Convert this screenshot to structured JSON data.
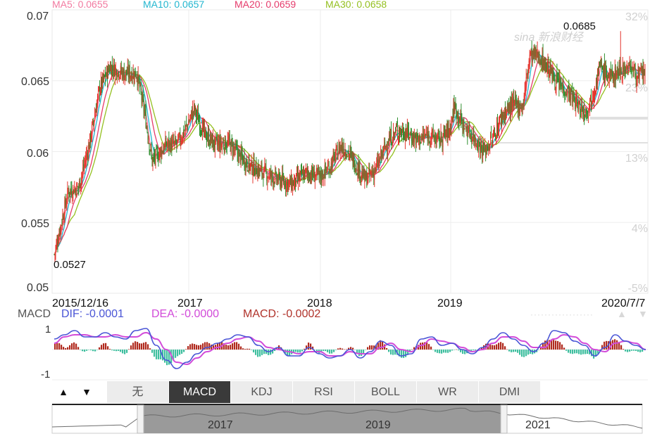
{
  "ma_legend": [
    {
      "label": "MA5: 0.0655",
      "color": "#f27aa0"
    },
    {
      "label": "MA10: 0.0657",
      "color": "#22b6cf"
    },
    {
      "label": "MA20: 0.0659",
      "color": "#e53b6b"
    },
    {
      "label": "MA30: 0.0658",
      "color": "#94c020"
    }
  ],
  "watermark": "sina 新浪财经",
  "macd_legend": {
    "title": "MACD",
    "dif": "DIF: -0.0001",
    "dea": "DEA: -0.0000",
    "macd": "MACD: -0.0002",
    "dif_color": "#4a55d6",
    "dea_color": "#d24bd9",
    "macd_color": "#b0322a"
  },
  "colors": {
    "up": "#e4342c",
    "down": "#2f8f2f",
    "macd_pos": "#b02a1e",
    "macd_neg": "#3fbf9f"
  },
  "tabs": [
    "无",
    "MACD",
    "KDJ",
    "RSI",
    "BOLL",
    "WR",
    "DMI"
  ],
  "active_tab": "MACD",
  "nav_buttons": {
    "up": "▲",
    "down": "▼"
  },
  "scroller": {
    "labels": [
      "2017",
      "2019",
      "2021"
    ]
  },
  "chart_data": [
    {
      "type": "candlestick",
      "x_labels": [
        "2015/12/16",
        "2017",
        "2018",
        "2019",
        "2020/7/7"
      ],
      "y_ticks": [
        "0.07",
        "0.065",
        "0.06",
        "0.055",
        "0.05"
      ],
      "y_ticks_right": [
        "32%",
        "23%",
        "13%",
        "4%",
        "-5%"
      ],
      "ylim": [
        0.05,
        0.07
      ],
      "annotations": {
        "min": "0.0527",
        "max": "0.0685"
      },
      "key_points": [
        [
          0,
          0.0527
        ],
        [
          20,
          0.0572
        ],
        [
          35,
          0.0575
        ],
        [
          50,
          0.0605
        ],
        [
          65,
          0.0645
        ],
        [
          80,
          0.066
        ],
        [
          100,
          0.0655
        ],
        [
          118,
          0.0655
        ],
        [
          130,
          0.0625
        ],
        [
          140,
          0.0593
        ],
        [
          160,
          0.0605
        ],
        [
          175,
          0.0605
        ],
        [
          185,
          0.0613
        ],
        [
          200,
          0.063
        ],
        [
          215,
          0.0612
        ],
        [
          230,
          0.0605
        ],
        [
          250,
          0.0606
        ],
        [
          265,
          0.0597
        ],
        [
          280,
          0.059
        ],
        [
          300,
          0.0585
        ],
        [
          320,
          0.058
        ],
        [
          340,
          0.0577
        ],
        [
          360,
          0.0585
        ],
        [
          380,
          0.0582
        ],
        [
          395,
          0.059
        ],
        [
          410,
          0.0604
        ],
        [
          420,
          0.06
        ],
        [
          432,
          0.059
        ],
        [
          445,
          0.058
        ],
        [
          460,
          0.0588
        ],
        [
          475,
          0.0605
        ],
        [
          490,
          0.0615
        ],
        [
          505,
          0.0613
        ],
        [
          520,
          0.0608
        ],
        [
          535,
          0.0612
        ],
        [
          550,
          0.0608
        ],
        [
          565,
          0.0615
        ],
        [
          572,
          0.0632
        ],
        [
          585,
          0.0618
        ],
        [
          600,
          0.061
        ],
        [
          615,
          0.06
        ],
        [
          628,
          0.061
        ],
        [
          640,
          0.0625
        ],
        [
          655,
          0.0633
        ],
        [
          670,
          0.0632
        ],
        [
          680,
          0.0668
        ],
        [
          692,
          0.0668
        ],
        [
          705,
          0.066
        ],
        [
          720,
          0.0648
        ],
        [
          735,
          0.0642
        ],
        [
          750,
          0.0632
        ],
        [
          760,
          0.0628
        ],
        [
          770,
          0.064
        ],
        [
          780,
          0.066
        ],
        [
          795,
          0.0652
        ],
        [
          810,
          0.0658
        ],
        [
          825,
          0.066
        ],
        [
          835,
          0.0652
        ],
        [
          845,
          0.0657
        ]
      ]
    },
    {
      "type": "macd",
      "y_ticks": [
        "1",
        "-1"
      ],
      "series": [
        {
          "name": "DIF",
          "values": [
            0.5,
            0.7,
            0.9,
            0.6,
            0.6,
            0.8,
            0.6,
            0.5,
            0.9,
            1.0,
            0.2,
            -0.5,
            -0.9,
            -0.6,
            -0.2,
            0.1,
            0.3,
            0.5,
            0.7,
            0.6,
            0.2,
            -0.1,
            0.1,
            -0.3,
            -0.3,
            0.1,
            -0.2,
            -0.4,
            -0.3,
            0.0,
            -0.4,
            -0.1,
            0.4,
            0.2,
            -0.3,
            -0.2,
            0.5,
            0.6,
            0.2,
            0.3,
            0.0,
            -0.2,
            0.1,
            0.5,
            0.8,
            0.5,
            0.2,
            -0.1,
            0.3,
            0.9,
            0.8,
            0.4,
            0.2,
            -0.3,
            0.1,
            0.7,
            0.4,
            0.2,
            0.0
          ]
        },
        {
          "name": "DEA",
          "values": [
            0.3,
            0.6,
            0.7,
            0.7,
            0.6,
            0.6,
            0.7,
            0.6,
            0.6,
            0.8,
            0.5,
            0.0,
            -0.6,
            -0.7,
            -0.4,
            -0.1,
            0.1,
            0.3,
            0.5,
            0.6,
            0.4,
            0.1,
            0.0,
            -0.1,
            -0.2,
            -0.1,
            -0.1,
            -0.3,
            -0.3,
            -0.1,
            -0.2,
            -0.2,
            0.1,
            0.3,
            0.0,
            -0.1,
            0.2,
            0.5,
            0.4,
            0.3,
            0.1,
            -0.1,
            0.0,
            0.3,
            0.6,
            0.6,
            0.4,
            0.1,
            0.1,
            0.5,
            0.7,
            0.6,
            0.3,
            0.0,
            -0.1,
            0.3,
            0.4,
            0.3,
            0.0
          ]
        }
      ]
    }
  ]
}
